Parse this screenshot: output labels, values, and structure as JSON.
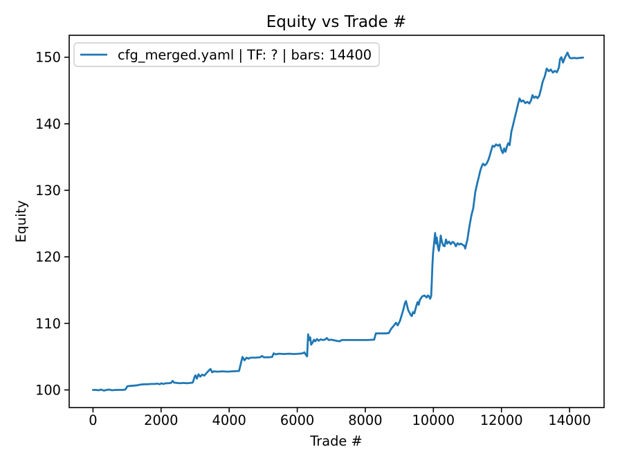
{
  "figure": {
    "background_color": "#ffffff",
    "text_color": "#000000",
    "spine_color": "#000000",
    "legend_border_color": "#cccccc"
  },
  "chart_data": {
    "type": "line",
    "title": "Equity vs Trade #",
    "xlabel": "Trade #",
    "ylabel": "Equity",
    "grid": false,
    "legend_position": "upper left",
    "xlim": [
      -700,
      15015
    ],
    "ylim": [
      97.35,
      153.3
    ],
    "xticks": [
      0,
      2000,
      4000,
      6000,
      8000,
      10000,
      12000,
      14000
    ],
    "yticks": [
      100,
      110,
      120,
      130,
      140,
      150
    ],
    "series": [
      {
        "name": "cfg_merged.yaml | TF: ? | bars: 14400",
        "color": "#1f77b4",
        "points": [
          [
            0,
            100
          ],
          [
            80,
            100
          ],
          [
            160,
            99.95
          ],
          [
            240,
            100.05
          ],
          [
            320,
            99.9
          ],
          [
            400,
            100
          ],
          [
            480,
            100.05
          ],
          [
            560,
            99.95
          ],
          [
            660,
            100
          ],
          [
            760,
            100
          ],
          [
            860,
            100
          ],
          [
            950,
            100.05
          ],
          [
            1010,
            100.55
          ],
          [
            1100,
            100.6
          ],
          [
            1200,
            100.65
          ],
          [
            1300,
            100.7
          ],
          [
            1400,
            100.8
          ],
          [
            1500,
            100.85
          ],
          [
            1600,
            100.85
          ],
          [
            1700,
            100.9
          ],
          [
            1800,
            100.9
          ],
          [
            1900,
            100.95
          ],
          [
            1960,
            100.85
          ],
          [
            2010,
            101
          ],
          [
            2070,
            100.9
          ],
          [
            2130,
            101
          ],
          [
            2210,
            101
          ],
          [
            2290,
            101.05
          ],
          [
            2340,
            101.35
          ],
          [
            2380,
            101.1
          ],
          [
            2460,
            101.05
          ],
          [
            2560,
            101
          ],
          [
            2660,
            101.05
          ],
          [
            2760,
            101
          ],
          [
            2860,
            101.05
          ],
          [
            2930,
            101.1
          ],
          [
            2980,
            101.9
          ],
          [
            3010,
            102.2
          ],
          [
            3050,
            101.7
          ],
          [
            3100,
            102.35
          ],
          [
            3150,
            102
          ],
          [
            3210,
            102.3
          ],
          [
            3270,
            102.15
          ],
          [
            3330,
            102.5
          ],
          [
            3390,
            102.85
          ],
          [
            3450,
            103.15
          ],
          [
            3500,
            102.65
          ],
          [
            3550,
            102.8
          ],
          [
            3660,
            102.75
          ],
          [
            3800,
            102.8
          ],
          [
            3950,
            102.75
          ],
          [
            4100,
            102.8
          ],
          [
            4290,
            102.85
          ],
          [
            4340,
            103.9
          ],
          [
            4390,
            104.95
          ],
          [
            4450,
            104.45
          ],
          [
            4510,
            104.85
          ],
          [
            4570,
            104.7
          ],
          [
            4630,
            104.85
          ],
          [
            4760,
            104.85
          ],
          [
            4900,
            104.9
          ],
          [
            4970,
            105.1
          ],
          [
            5020,
            104.9
          ],
          [
            5150,
            104.9
          ],
          [
            5260,
            104.95
          ],
          [
            5310,
            105.5
          ],
          [
            5370,
            105.35
          ],
          [
            5460,
            105.45
          ],
          [
            5610,
            105.4
          ],
          [
            5760,
            105.45
          ],
          [
            5910,
            105.4
          ],
          [
            6060,
            105.45
          ],
          [
            6160,
            105.5
          ],
          [
            6210,
            105.65
          ],
          [
            6250,
            105.3
          ],
          [
            6290,
            105.05
          ],
          [
            6320,
            108.35
          ],
          [
            6350,
            107.5
          ],
          [
            6380,
            107.9
          ],
          [
            6410,
            106.8
          ],
          [
            6450,
            107.1
          ],
          [
            6490,
            107.55
          ],
          [
            6530,
            107.3
          ],
          [
            6580,
            107.65
          ],
          [
            6630,
            107.4
          ],
          [
            6690,
            107.6
          ],
          [
            6750,
            107.5
          ],
          [
            6810,
            107.55
          ],
          [
            6870,
            107.8
          ],
          [
            6920,
            107.5
          ],
          [
            7000,
            107.55
          ],
          [
            7090,
            107.45
          ],
          [
            7180,
            107.35
          ],
          [
            7240,
            107.3
          ],
          [
            7310,
            107.5
          ],
          [
            7460,
            107.5
          ],
          [
            7610,
            107.5
          ],
          [
            7760,
            107.5
          ],
          [
            7910,
            107.5
          ],
          [
            8060,
            107.5
          ],
          [
            8260,
            107.55
          ],
          [
            8310,
            108.5
          ],
          [
            8460,
            108.5
          ],
          [
            8610,
            108.5
          ],
          [
            8690,
            108.55
          ],
          [
            8760,
            109.2
          ],
          [
            8820,
            109.55
          ],
          [
            8900,
            110.1
          ],
          [
            8950,
            109.7
          ],
          [
            9020,
            110.4
          ],
          [
            9060,
            111.1
          ],
          [
            9130,
            112.3
          ],
          [
            9160,
            113
          ],
          [
            9195,
            113.35
          ],
          [
            9260,
            112
          ],
          [
            9330,
            111.3
          ],
          [
            9365,
            111.1
          ],
          [
            9400,
            111.7
          ],
          [
            9440,
            111.5
          ],
          [
            9500,
            112.65
          ],
          [
            9535,
            113.2
          ],
          [
            9570,
            112.8
          ],
          [
            9600,
            113.5
          ],
          [
            9670,
            114.05
          ],
          [
            9735,
            114.2
          ],
          [
            9805,
            113.9
          ],
          [
            9840,
            114.2
          ],
          [
            9875,
            114.05
          ],
          [
            9905,
            113.7
          ],
          [
            9935,
            114.1
          ],
          [
            9955,
            116.5
          ],
          [
            9970,
            118.5
          ],
          [
            9990,
            120.5
          ],
          [
            10010,
            121.5
          ],
          [
            10050,
            123.6
          ],
          [
            10080,
            122
          ],
          [
            10100,
            122.9
          ],
          [
            10130,
            121.6
          ],
          [
            10160,
            120.9
          ],
          [
            10190,
            121.9
          ],
          [
            10215,
            123.2
          ],
          [
            10250,
            122.3
          ],
          [
            10290,
            121.7
          ],
          [
            10330,
            121.6
          ],
          [
            10370,
            122.6
          ],
          [
            10410,
            122
          ],
          [
            10460,
            122.3
          ],
          [
            10510,
            121.9
          ],
          [
            10560,
            122.25
          ],
          [
            10610,
            122.1
          ],
          [
            10660,
            121.6
          ],
          [
            10710,
            122.05
          ],
          [
            10760,
            121.85
          ],
          [
            10810,
            122
          ],
          [
            10860,
            121.8
          ],
          [
            10905,
            121.7
          ],
          [
            10935,
            121.25
          ],
          [
            10965,
            121.9
          ],
          [
            11000,
            122.6
          ],
          [
            11040,
            124
          ],
          [
            11080,
            125.2
          ],
          [
            11120,
            126.3
          ],
          [
            11170,
            127.3
          ],
          [
            11230,
            129.7
          ],
          [
            11280,
            130.9
          ],
          [
            11330,
            131.9
          ],
          [
            11380,
            133
          ],
          [
            11420,
            133.6
          ],
          [
            11460,
            134
          ],
          [
            11510,
            133.75
          ],
          [
            11560,
            134
          ],
          [
            11610,
            134.5
          ],
          [
            11650,
            135.1
          ],
          [
            11700,
            136
          ],
          [
            11740,
            136.7
          ],
          [
            11790,
            136.55
          ],
          [
            11840,
            136.9
          ],
          [
            11900,
            136.7
          ],
          [
            11950,
            136.9
          ],
          [
            12000,
            136
          ],
          [
            12040,
            135.6
          ],
          [
            12080,
            136.3
          ],
          [
            12120,
            135.8
          ],
          [
            12160,
            136.6
          ],
          [
            12200,
            137.1
          ],
          [
            12240,
            136.8
          ],
          [
            12290,
            138.8
          ],
          [
            12340,
            139.8
          ],
          [
            12390,
            140.9
          ],
          [
            12440,
            141.9
          ],
          [
            12490,
            143
          ],
          [
            12530,
            143.8
          ],
          [
            12580,
            143.35
          ],
          [
            12640,
            143.5
          ],
          [
            12700,
            143.1
          ],
          [
            12760,
            143.3
          ],
          [
            12820,
            143.05
          ],
          [
            12870,
            143.55
          ],
          [
            12910,
            144.3
          ],
          [
            12960,
            143.9
          ],
          [
            13010,
            144.1
          ],
          [
            13060,
            143.85
          ],
          [
            13110,
            144.2
          ],
          [
            13160,
            145.2
          ],
          [
            13210,
            146.3
          ],
          [
            13270,
            147.1
          ],
          [
            13330,
            148.3
          ],
          [
            13390,
            147.9
          ],
          [
            13450,
            148.15
          ],
          [
            13510,
            147.7
          ],
          [
            13570,
            147.95
          ],
          [
            13630,
            147.75
          ],
          [
            13690,
            148.5
          ],
          [
            13720,
            149.7
          ],
          [
            13760,
            150
          ],
          [
            13810,
            149.2
          ],
          [
            13860,
            149.9
          ],
          [
            13910,
            150.4
          ],
          [
            13940,
            150.7
          ],
          [
            13980,
            150.2
          ],
          [
            14010,
            149.9
          ],
          [
            14060,
            149.85
          ],
          [
            14140,
            149.9
          ],
          [
            14220,
            149.85
          ],
          [
            14300,
            149.9
          ],
          [
            14400,
            149.95
          ]
        ]
      }
    ]
  }
}
